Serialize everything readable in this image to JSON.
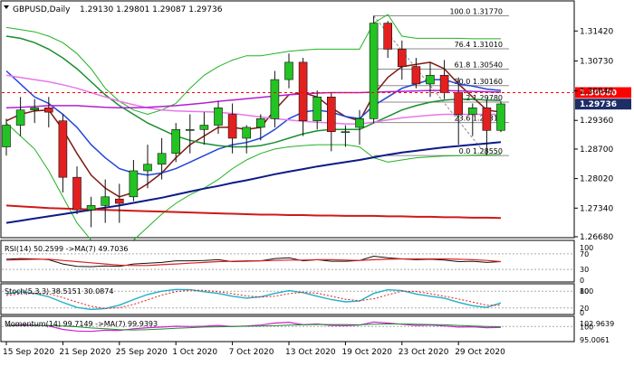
{
  "header": {
    "symbol": "GBPUSD,Daily",
    "ohlc": "1.29130 1.29801 1.29087 1.29736"
  },
  "colors": {
    "bull": "#22c322",
    "bear": "#e32020",
    "candle_edge": "#111111",
    "ma_fast": "#7f1a10",
    "ma_medium": "#2346d8",
    "ma_green": "#1a8f2e",
    "ma_pink": "#e878e8",
    "ma_purple": "#b020d0",
    "ma_navy": "#0d1a86",
    "ma_red": "#d01818",
    "envelope": "#22b222",
    "fib": "#8c8c8c",
    "price_marker": "#ff0000",
    "current_price": "#1d2d66"
  },
  "chart_data": {
    "type": "candlestick",
    "title": "GBPUSD,Daily",
    "ylim": [
      1.2668,
      1.3205
    ],
    "y_ticks": [
      "1.31420",
      "1.30730",
      "1.30040",
      "1.29360",
      "1.28700",
      "1.28020",
      "1.27340",
      "1.26680"
    ],
    "x_labels": [
      {
        "label": "15 Sep 2020",
        "index": 0
      },
      {
        "label": "21 Sep 2020",
        "index": 4
      },
      {
        "label": "25 Sep 2020",
        "index": 8
      },
      {
        "label": "1 Oct 2020",
        "index": 12
      },
      {
        "label": "7 Oct 2020",
        "index": 16
      },
      {
        "label": "13 Oct 2020",
        "index": 20
      },
      {
        "label": "19 Oct 2020",
        "index": 24
      },
      {
        "label": "23 Oct 2020",
        "index": 28
      },
      {
        "label": "29 Oct 2020",
        "index": 32
      }
    ],
    "candles": [
      {
        "o": 1.2875,
        "h": 1.294,
        "l": 1.2855,
        "c": 1.2925
      },
      {
        "o": 1.2925,
        "h": 1.299,
        "l": 1.29,
        "c": 1.296
      },
      {
        "o": 1.296,
        "h": 1.2985,
        "l": 1.293,
        "c": 1.2965
      },
      {
        "o": 1.2965,
        "h": 1.299,
        "l": 1.292,
        "c": 1.2955
      },
      {
        "o": 1.2935,
        "h": 1.295,
        "l": 1.277,
        "c": 1.2805
      },
      {
        "o": 1.2805,
        "h": 1.283,
        "l": 1.272,
        "c": 1.273
      },
      {
        "o": 1.273,
        "h": 1.276,
        "l": 1.269,
        "c": 1.274
      },
      {
        "o": 1.274,
        "h": 1.28,
        "l": 1.27,
        "c": 1.276
      },
      {
        "o": 1.2755,
        "h": 1.279,
        "l": 1.27,
        "c": 1.2745
      },
      {
        "o": 1.276,
        "h": 1.2845,
        "l": 1.275,
        "c": 1.282
      },
      {
        "o": 1.282,
        "h": 1.288,
        "l": 1.278,
        "c": 1.2835
      },
      {
        "o": 1.2835,
        "h": 1.2895,
        "l": 1.28,
        "c": 1.286
      },
      {
        "o": 1.286,
        "h": 1.293,
        "l": 1.284,
        "c": 1.2915
      },
      {
        "o": 1.2915,
        "h": 1.295,
        "l": 1.286,
        "c": 1.2915
      },
      {
        "o": 1.2915,
        "h": 1.2955,
        "l": 1.288,
        "c": 1.2925
      },
      {
        "o": 1.2925,
        "h": 1.298,
        "l": 1.2905,
        "c": 1.2965
      },
      {
        "o": 1.295,
        "h": 1.2975,
        "l": 1.286,
        "c": 1.2895
      },
      {
        "o": 1.2895,
        "h": 1.2925,
        "l": 1.286,
        "c": 1.292
      },
      {
        "o": 1.292,
        "h": 1.295,
        "l": 1.289,
        "c": 1.294
      },
      {
        "o": 1.294,
        "h": 1.305,
        "l": 1.292,
        "c": 1.303
      },
      {
        "o": 1.303,
        "h": 1.309,
        "l": 1.301,
        "c": 1.307
      },
      {
        "o": 1.307,
        "h": 1.308,
        "l": 1.29,
        "c": 1.2935
      },
      {
        "o": 1.2935,
        "h": 1.3005,
        "l": 1.2915,
        "c": 1.299
      },
      {
        "o": 1.299,
        "h": 1.3,
        "l": 1.2865,
        "c": 1.291
      },
      {
        "o": 1.291,
        "h": 1.2925,
        "l": 1.2875,
        "c": 1.291
      },
      {
        "o": 1.292,
        "h": 1.296,
        "l": 1.288,
        "c": 1.294
      },
      {
        "o": 1.294,
        "h": 1.3177,
        "l": 1.293,
        "c": 1.316
      },
      {
        "o": 1.316,
        "h": 1.3165,
        "l": 1.308,
        "c": 1.31
      },
      {
        "o": 1.31,
        "h": 1.312,
        "l": 1.303,
        "c": 1.306
      },
      {
        "o": 1.306,
        "h": 1.308,
        "l": 1.301,
        "c": 1.302
      },
      {
        "o": 1.302,
        "h": 1.307,
        "l": 1.299,
        "c": 1.304
      },
      {
        "o": 1.304,
        "h": 1.3075,
        "l": 1.2985,
        "c": 1.3
      },
      {
        "o": 1.3,
        "h": 1.3035,
        "l": 1.288,
        "c": 1.295
      },
      {
        "o": 1.295,
        "h": 1.2975,
        "l": 1.29,
        "c": 1.2965
      },
      {
        "o": 1.2965,
        "h": 1.2985,
        "l": 1.2856,
        "c": 1.2913
      },
      {
        "o": 1.2913,
        "h": 1.298,
        "l": 1.2909,
        "c": 1.2974
      }
    ],
    "moving_averages": [
      {
        "color_key": "ma_fast",
        "width": 1.5,
        "values": [
          1.2935,
          1.295,
          1.2958,
          1.296,
          1.2915,
          1.286,
          1.281,
          1.278,
          1.276,
          1.277,
          1.279,
          1.2815,
          1.285,
          1.288,
          1.29,
          1.292,
          1.292,
          1.2915,
          1.292,
          1.296,
          1.2995,
          1.3,
          1.299,
          1.2965,
          1.2945,
          1.2935,
          1.2995,
          1.3035,
          1.306,
          1.3065,
          1.307,
          1.3055,
          1.302,
          1.299,
          1.296,
          1.2955
        ]
      },
      {
        "color_key": "ma_medium",
        "width": 1.5,
        "values": [
          1.305,
          1.302,
          1.299,
          1.2975,
          1.295,
          1.292,
          1.288,
          1.285,
          1.2825,
          1.2815,
          1.281,
          1.2815,
          1.2825,
          1.284,
          1.2855,
          1.287,
          1.288,
          1.2885,
          1.2895,
          1.2915,
          1.294,
          1.2955,
          1.296,
          1.2955,
          1.2945,
          1.294,
          1.297,
          1.299,
          1.301,
          1.302,
          1.303,
          1.303,
          1.302,
          1.3015,
          1.3008,
          1.3005
        ]
      },
      {
        "color_key": "ma_green",
        "width": 1.5,
        "values": [
          1.313,
          1.3125,
          1.3115,
          1.31,
          1.308,
          1.3055,
          1.3025,
          1.2995,
          1.297,
          1.295,
          1.293,
          1.2915,
          1.29,
          1.289,
          1.2883,
          1.2878,
          1.2875,
          1.2875,
          1.2878,
          1.2885,
          1.2895,
          1.2905,
          1.2912,
          1.2915,
          1.2915,
          1.2915,
          1.293,
          1.2945,
          1.296,
          1.297,
          1.2978,
          1.2983,
          1.2985,
          1.2985,
          1.2983,
          1.2982
        ]
      },
      {
        "color_key": "ma_pink",
        "width": 1.5,
        "values": [
          1.304,
          1.3035,
          1.303,
          1.3025,
          1.3018,
          1.301,
          1.3,
          1.299,
          1.298,
          1.2972,
          1.2965,
          1.296,
          1.2958,
          1.2957,
          1.2956,
          1.2955,
          1.2952,
          1.2948,
          1.2944,
          1.294,
          1.2937,
          1.2934,
          1.2932,
          1.293,
          1.2928,
          1.2928,
          1.2932,
          1.2937,
          1.2942,
          1.2945,
          1.2948,
          1.295,
          1.295,
          1.295,
          1.295,
          1.295
        ]
      },
      {
        "color_key": "ma_purple",
        "width": 1.5,
        "values": [
          1.2965,
          1.2966,
          1.2968,
          1.297,
          1.297,
          1.297,
          1.2968,
          1.2966,
          1.2965,
          1.2965,
          1.2966,
          1.2968,
          1.297,
          1.2973,
          1.2976,
          1.298,
          1.2983,
          1.2986,
          1.2989,
          1.2992,
          1.2995,
          1.2997,
          1.2999,
          1.3,
          1.3,
          1.3,
          1.3001,
          1.3002,
          1.3003,
          1.3004,
          1.3005,
          1.3005,
          1.3004,
          1.3003,
          1.3002,
          1.3001
        ]
      },
      {
        "color_key": "ma_navy",
        "width": 2,
        "values": [
          1.27,
          1.2705,
          1.271,
          1.2715,
          1.272,
          1.2725,
          1.273,
          1.2735,
          1.274,
          1.2746,
          1.2752,
          1.2758,
          1.2765,
          1.2772,
          1.2779,
          1.2785,
          1.2792,
          1.2798,
          1.2805,
          1.2812,
          1.2818,
          1.2824,
          1.283,
          1.2835,
          1.284,
          1.2845,
          1.2851,
          1.2857,
          1.2862,
          1.2866,
          1.287,
          1.2874,
          1.2877,
          1.288,
          1.2883,
          1.2886
        ]
      },
      {
        "color_key": "ma_red",
        "width": 2,
        "values": [
          1.274,
          1.2738,
          1.2736,
          1.2734,
          1.2733,
          1.2732,
          1.2731,
          1.273,
          1.2729,
          1.2728,
          1.2727,
          1.2726,
          1.2725,
          1.2724,
          1.2723,
          1.2722,
          1.2721,
          1.272,
          1.2719,
          1.2719,
          1.2718,
          1.2718,
          1.2717,
          1.2717,
          1.2716,
          1.2716,
          1.2716,
          1.2715,
          1.2715,
          1.2714,
          1.2714,
          1.2713,
          1.2713,
          1.2712,
          1.2712,
          1.2711
        ]
      }
    ],
    "envelope": {
      "color_key": "envelope",
      "upper": [
        1.315,
        1.3145,
        1.314,
        1.313,
        1.3115,
        1.309,
        1.3055,
        1.301,
        1.298,
        1.296,
        1.295,
        1.296,
        1.2975,
        1.301,
        1.304,
        1.306,
        1.3075,
        1.3085,
        1.3085,
        1.309,
        1.3095,
        1.3098,
        1.31,
        1.31,
        1.31,
        1.31,
        1.316,
        1.318,
        1.313,
        1.3125,
        1.3125,
        1.3125,
        1.3125,
        1.3124,
        1.3124,
        1.3124
      ],
      "lower": [
        1.293,
        1.29,
        1.287,
        1.282,
        1.276,
        1.27,
        1.266,
        1.264,
        1.264,
        1.266,
        1.269,
        1.272,
        1.2745,
        1.2765,
        1.278,
        1.28,
        1.2825,
        1.2845,
        1.286,
        1.287,
        1.2875,
        1.2878,
        1.288,
        1.288,
        1.288,
        1.2875,
        1.285,
        1.284,
        1.2845,
        1.285,
        1.2852,
        1.2854,
        1.2855,
        1.2856,
        1.2857,
        1.2858
      ]
    },
    "fib_levels": [
      {
        "label": "100.0 1.31770",
        "value": 1.3177,
        "start_index": 26
      },
      {
        "label": "76.4 1.31010",
        "value": 1.3101,
        "start_index": 26
      },
      {
        "label": "61.8 1.30540",
        "value": 1.3054,
        "start_index": 26
      },
      {
        "label": "50.0 1.30160",
        "value": 1.3016,
        "start_index": 26
      },
      {
        "label": "38.2 1.29780",
        "value": 1.2978,
        "start_index": 26
      },
      {
        "label": "23.6 1.29310",
        "value": 1.2931,
        "start_index": 26
      },
      {
        "label": "0.0 1.28550",
        "value": 1.2855,
        "start_index": 26
      }
    ],
    "horizontal_line": {
      "value": 1.3,
      "label": "1.30000"
    },
    "current_price": {
      "value": 1.29736,
      "label": "1.29736"
    },
    "fib_trend": {
      "from_index": 26,
      "from_value": 1.3177,
      "to_index": 34,
      "to_value": 1.2855
    }
  },
  "indicators": {
    "rsi": {
      "label": "RSI(14) 50.2599 ->MA(7) 49.7036",
      "ticks": [
        "100",
        "70",
        "30",
        "0"
      ],
      "ylim": [
        0,
        100
      ],
      "levels": [
        70,
        30
      ],
      "values": [
        56,
        58,
        57,
        55,
        44,
        38,
        37,
        39,
        38,
        44,
        46,
        48,
        52,
        52,
        53,
        55,
        50,
        51,
        52,
        58,
        60,
        52,
        55,
        51,
        51,
        53,
        64,
        60,
        57,
        55,
        56,
        54,
        50,
        51,
        48,
        50
      ],
      "ma": [
        54,
        55,
        56,
        56,
        53,
        50,
        47,
        44,
        41,
        40,
        40,
        42,
        44,
        46,
        48,
        50,
        51,
        52,
        52,
        53,
        54,
        54,
        55,
        55,
        54,
        53,
        55,
        56,
        57,
        57,
        57,
        57,
        56,
        55,
        53,
        50
      ]
    },
    "stoch": {
      "label": "Stoch(5,3,3) 38.5151 30.0874",
      "ticks": [
        "100",
        "80",
        "20",
        "0"
      ],
      "ylim": [
        0,
        100
      ],
      "levels": [
        80,
        20
      ],
      "k": [
        70,
        78,
        72,
        60,
        40,
        22,
        15,
        18,
        30,
        50,
        68,
        80,
        86,
        85,
        78,
        72,
        62,
        55,
        60,
        72,
        82,
        75,
        62,
        50,
        42,
        45,
        72,
        85,
        82,
        70,
        62,
        55,
        40,
        28,
        22,
        38
      ],
      "d": [
        65,
        70,
        73,
        70,
        57,
        41,
        26,
        18,
        21,
        33,
        49,
        66,
        78,
        84,
        83,
        78,
        71,
        63,
        59,
        62,
        71,
        76,
        73,
        62,
        51,
        46,
        53,
        67,
        80,
        79,
        71,
        62,
        52,
        41,
        30,
        30
      ]
    },
    "momentum": {
      "label": "Momentum(14) 99.7149 ->MA(7) 99.9393",
      "ticks": [
        "102.9639",
        "100",
        "95.0061"
      ],
      "ylim": [
        95.0061,
        102.9639
      ],
      "levels": [
        100
      ],
      "values": [
        100.3,
        100.6,
        100.5,
        100.2,
        99.0,
        98.4,
        98.3,
        98.7,
        98.6,
        99.2,
        99.6,
        99.8,
        100.1,
        100.0,
        100.1,
        100.4,
        100.0,
        100.2,
        100.5,
        101.2,
        101.5,
        100.6,
        100.9,
        100.4,
        100.3,
        100.5,
        101.6,
        101.2,
        100.8,
        100.4,
        100.5,
        100.2,
        99.8,
        99.9,
        99.6,
        99.7
      ],
      "ma": [
        100.2,
        100.3,
        100.4,
        100.4,
        100.2,
        99.9,
        99.5,
        99.2,
        98.9,
        98.8,
        98.9,
        99.1,
        99.4,
        99.6,
        99.8,
        99.9,
        100.0,
        100.1,
        100.2,
        100.3,
        100.5,
        100.6,
        100.7,
        100.7,
        100.7,
        100.6,
        100.8,
        100.9,
        100.9,
        100.8,
        100.7,
        100.6,
        100.4,
        100.2,
        100.0,
        99.9
      ]
    }
  }
}
